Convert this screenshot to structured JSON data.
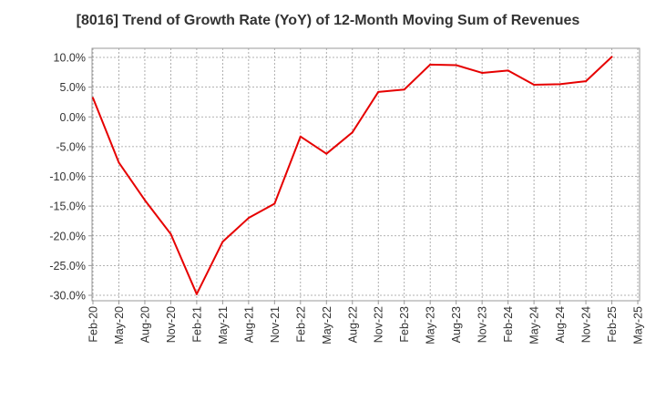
{
  "chart_data": {
    "type": "line",
    "title": "[8016]  Trend of Growth Rate (YoY) of 12-Month Moving Sum of Revenues",
    "xlabel": "",
    "ylabel": "",
    "x": [
      "Feb-20",
      "May-20",
      "Aug-20",
      "Nov-20",
      "Feb-21",
      "May-21",
      "Aug-21",
      "Nov-21",
      "Feb-22",
      "May-22",
      "Aug-22",
      "Nov-22",
      "Feb-23",
      "May-23",
      "Aug-23",
      "Nov-23",
      "Feb-24",
      "May-24",
      "Aug-24",
      "Nov-24",
      "Feb-25",
      "May-25"
    ],
    "ylim": [
      -31,
      11.5
    ],
    "yticks": [
      10,
      5,
      0,
      -5,
      -10,
      -15,
      -20,
      -25,
      -30
    ],
    "ytick_labels": [
      "10.0%",
      "5.0%",
      "0.0%",
      "-5.0%",
      "-10.0%",
      "-15.0%",
      "-20.0%",
      "-25.0%",
      "-30.0%"
    ],
    "grid": true,
    "series": [
      {
        "color": "#e60000",
        "values": [
          3.2,
          -7.7,
          -14.0,
          -19.7,
          -29.8,
          -21.0,
          -17.0,
          -14.6,
          -3.3,
          -6.2,
          -2.6,
          4.2,
          4.6,
          8.8,
          8.7,
          7.4,
          7.8,
          5.4,
          5.5,
          6.0,
          10.1,
          null
        ]
      }
    ]
  }
}
